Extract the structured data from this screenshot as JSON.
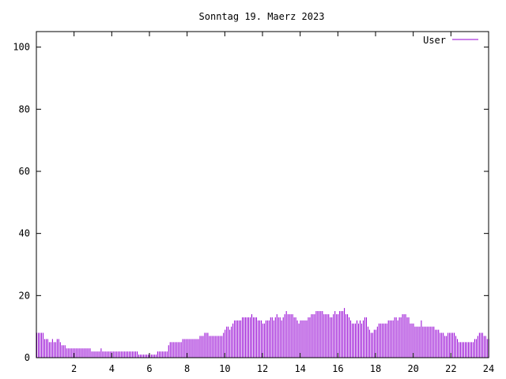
{
  "chart_data": {
    "type": "bar",
    "title": "Sonntag 19. Maerz 2023",
    "xlabel": "",
    "ylabel": "",
    "xlim": [
      0,
      24
    ],
    "ylim": [
      0,
      105
    ],
    "x_ticks": [
      2,
      4,
      6,
      8,
      10,
      12,
      14,
      16,
      18,
      20,
      22,
      24
    ],
    "y_ticks": [
      0,
      20,
      40,
      60,
      80,
      100
    ],
    "grid": false,
    "legend_position": "top-right",
    "series": [
      {
        "name": "User",
        "color": "#9400d3",
        "step_hours": 0.0833,
        "values": [
          8,
          8,
          8,
          8,
          8,
          6,
          6,
          6,
          5,
          5,
          6,
          5,
          5,
          6,
          6,
          5,
          4,
          4,
          4,
          3,
          3,
          3,
          3,
          3,
          3,
          3,
          3,
          3,
          3,
          3,
          3,
          3,
          3,
          3,
          3,
          2,
          2,
          2,
          2,
          2,
          2,
          3,
          2,
          2,
          2,
          2,
          2,
          2,
          2,
          2,
          2,
          2,
          2,
          2,
          2,
          2,
          2,
          2,
          2,
          2,
          2,
          2,
          2,
          2,
          2,
          1,
          1,
          1,
          1,
          1,
          1,
          1,
          1,
          1,
          1,
          1,
          1,
          2,
          2,
          2,
          2,
          2,
          2,
          2,
          4,
          5,
          5,
          5,
          5,
          5,
          5,
          5,
          5,
          6,
          6,
          6,
          6,
          6,
          6,
          6,
          6,
          6,
          6,
          6,
          7,
          7,
          7,
          8,
          8,
          8,
          7,
          7,
          7,
          7,
          7,
          7,
          7,
          7,
          7,
          8,
          9,
          10,
          10,
          9,
          10,
          11,
          12,
          12,
          12,
          12,
          12,
          13,
          13,
          13,
          13,
          13,
          13,
          14,
          13,
          13,
          13,
          12,
          12,
          12,
          11,
          11,
          12,
          12,
          12,
          13,
          13,
          12,
          13,
          14,
          13,
          13,
          12,
          13,
          14,
          15,
          14,
          14,
          14,
          14,
          13,
          13,
          12,
          11,
          12,
          12,
          12,
          12,
          12,
          13,
          13,
          14,
          14,
          14,
          15,
          15,
          15,
          15,
          15,
          14,
          14,
          14,
          14,
          13,
          13,
          14,
          15,
          14,
          14,
          15,
          15,
          15,
          16,
          14,
          14,
          13,
          12,
          11,
          11,
          11,
          12,
          11,
          12,
          11,
          12,
          13,
          13,
          10,
          9,
          8,
          8,
          9,
          9,
          10,
          11,
          11,
          11,
          11,
          11,
          11,
          12,
          12,
          12,
          12,
          13,
          13,
          12,
          13,
          13,
          14,
          14,
          14,
          13,
          13,
          11,
          11,
          11,
          10,
          10,
          10,
          10,
          12,
          10,
          10,
          10,
          10,
          10,
          10,
          10,
          10,
          9,
          9,
          9,
          8,
          8,
          8,
          7,
          7,
          8,
          8,
          8,
          8,
          8,
          7,
          6,
          5,
          5,
          5,
          5,
          5,
          5,
          5,
          5,
          5,
          5,
          6,
          6,
          7,
          8,
          8,
          8,
          7,
          7,
          6,
          6
        ]
      }
    ]
  }
}
